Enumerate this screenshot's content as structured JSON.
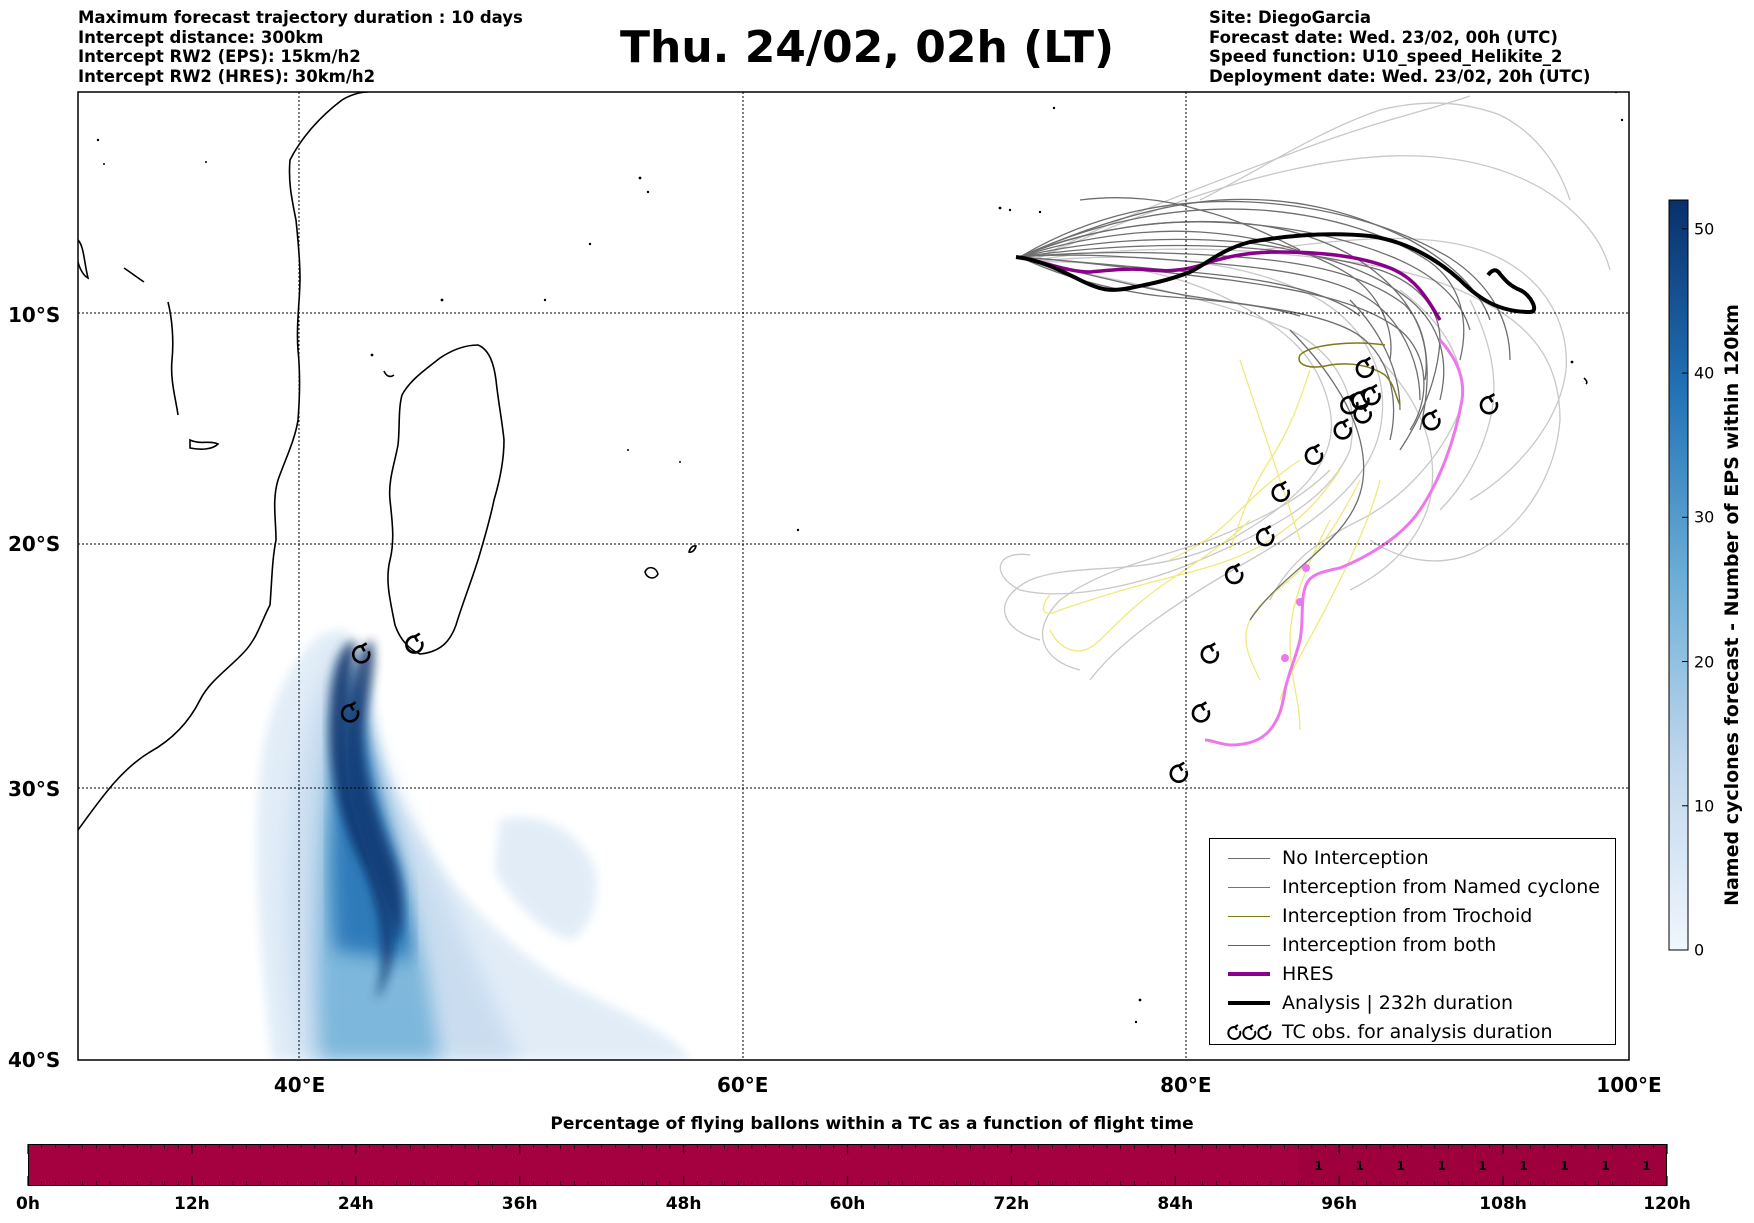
{
  "header_left": [
    "Maximum forecast trajectory duration : 10 days",
    "Intercept distance: 300km",
    "Intercept RW2 (EPS):  15km/h2",
    "Intercept RW2 (HRES): 30km/h2"
  ],
  "header_right": [
    "Site: DiegoGarcia",
    "Forecast date: Wed. 23/02, 00h (UTC)",
    "Speed function: U10_speed_Helikite_2",
    "Deployment date: Wed. 23/02, 20h (UTC)"
  ],
  "title": "Thu. 24/02, 02h (LT)",
  "map": {
    "lon_range": [
      30,
      100
    ],
    "lat_range": [
      -40,
      0
    ],
    "lat_ticks": [
      {
        "lat": -10,
        "label": "10°S"
      },
      {
        "lat": -20,
        "label": "20°S"
      },
      {
        "lat": -30,
        "label": "30°S"
      },
      {
        "lat": -40,
        "label": "40°S"
      }
    ],
    "lon_ticks": [
      {
        "lon": 40,
        "label": "40°E"
      },
      {
        "lon": 60,
        "label": "60°E"
      },
      {
        "lon": 80,
        "label": "80°E"
      },
      {
        "lon": 100,
        "label": "100°E"
      }
    ],
    "grid": "dotted",
    "colors": {
      "no_interception": "#6e6e6e",
      "light_track": "#c8c8c8",
      "yellow_track": "#eeea7c",
      "trochoid": "#7f7a18",
      "named": "#ff4500",
      "both": "#228b22",
      "hres": "#8b008b",
      "analysis": "#000000",
      "tc_track": "#ee77ee",
      "density": "#08306b"
    },
    "tc_obs_symbols": [
      {
        "lon": 88.1,
        "lat": -12.4
      },
      {
        "lon": 87.4,
        "lat": -14.0
      },
      {
        "lon": 87.9,
        "lat": -13.8
      },
      {
        "lon": 88.4,
        "lat": -13.6
      },
      {
        "lon": 88.0,
        "lat": -14.4
      },
      {
        "lon": 87.1,
        "lat": -15.1
      },
      {
        "lon": 91.1,
        "lat": -14.7
      },
      {
        "lon": 93.7,
        "lat": -14.0
      },
      {
        "lon": 85.8,
        "lat": -16.2
      },
      {
        "lon": 84.3,
        "lat": -17.8
      },
      {
        "lon": 83.6,
        "lat": -19.7
      },
      {
        "lon": 82.2,
        "lat": -21.3
      },
      {
        "lon": 81.1,
        "lat": -24.6
      },
      {
        "lon": 80.7,
        "lat": -27.0
      },
      {
        "lon": 79.7,
        "lat": -29.4
      },
      {
        "lon": 45.2,
        "lat": -24.2
      },
      {
        "lon": 42.8,
        "lat": -24.6
      },
      {
        "lon": 42.3,
        "lat": -27.0
      }
    ]
  },
  "colorbar": {
    "title": "Named cyclones forecast - Number of EPS within 120km",
    "min": 0,
    "max": 52,
    "ticks": [
      "0",
      "10",
      "20",
      "30",
      "40",
      "50"
    ]
  },
  "legend": [
    {
      "label": "No Interception",
      "color": "#6e6e6e",
      "width": 1
    },
    {
      "label": "Interception from Named cyclone",
      "color": "#ff4500",
      "width": 1
    },
    {
      "label": "Interception from Trochoid",
      "color": "#7f7a18",
      "width": 1
    },
    {
      "label": "Interception from both",
      "color": "#228b22",
      "width": 1
    },
    {
      "label": "HRES",
      "color": "#8b008b",
      "width": 3
    },
    {
      "label": "Analysis | 232h duration",
      "color": "#000000",
      "width": 3
    },
    {
      "label": "TC obs. for analysis duration",
      "symbol": "tc-obs"
    }
  ],
  "time_bar": {
    "title": "Percentage of flying ballons within a TC as a function of flight time",
    "range_hours": [
      0,
      120
    ],
    "tick_labels": [
      "0h",
      "12h",
      "24h",
      "36h",
      "48h",
      "60h",
      "72h",
      "84h",
      "96h",
      "108h",
      "120h"
    ],
    "highlight_start_hours": 93,
    "values": [
      {
        "hour": 94.5,
        "value": "1"
      },
      {
        "hour": 97.5,
        "value": "1"
      },
      {
        "hour": 100.5,
        "value": "1"
      },
      {
        "hour": 103.5,
        "value": "1"
      },
      {
        "hour": 106.5,
        "value": "1"
      },
      {
        "hour": 109.5,
        "value": "1"
      },
      {
        "hour": 112.5,
        "value": "1"
      },
      {
        "hour": 115.5,
        "value": "1"
      },
      {
        "hour": 118.5,
        "value": "1"
      }
    ]
  }
}
